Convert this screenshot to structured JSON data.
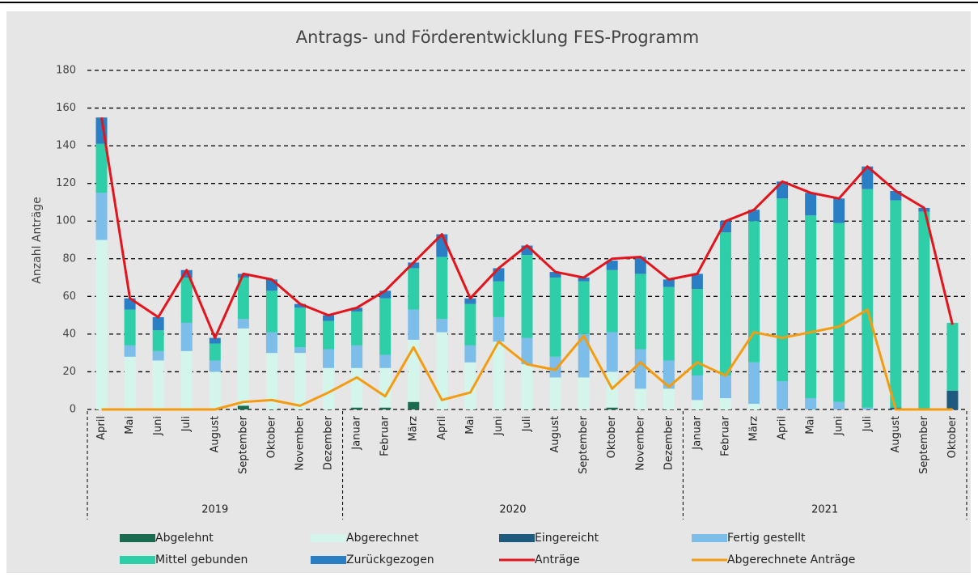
{
  "chart_data": {
    "type": "stacked-bar-line",
    "title": "Antrags- und Förderentwicklung FES-Programm",
    "y_label": "Anzahl Anträge",
    "years": [
      {
        "label": "2019",
        "months": [
          "April",
          "Mai",
          "Juni",
          "Juli",
          "August",
          "September",
          "Oktober",
          "November",
          "Dezember"
        ]
      },
      {
        "label": "2020",
        "months": [
          "Januar",
          "Februar",
          "März",
          "April",
          "Mai",
          "Juni",
          "Juli",
          "August",
          "September",
          "Oktober",
          "November",
          "Dezember"
        ]
      },
      {
        "label": "2021",
        "months": [
          "Januar",
          "Februar",
          "März",
          "April",
          "Mai",
          "Juni",
          "Juli",
          "August",
          "September",
          "Oktober"
        ]
      }
    ],
    "ylim": [
      0,
      180
    ],
    "yticks": [
      0,
      20,
      40,
      60,
      80,
      100,
      120,
      140,
      160,
      180
    ],
    "grid": true,
    "series": [
      {
        "name": "Abgelehnt",
        "kind": "bar",
        "color": "#1a6b50",
        "values": [
          0,
          0,
          0,
          0,
          0,
          2,
          0,
          0,
          0,
          1,
          1,
          4,
          0,
          0,
          0,
          0,
          0,
          0,
          1,
          0,
          0,
          0,
          0,
          0,
          0,
          0,
          0,
          0,
          0,
          0,
          0
        ]
      },
      {
        "name": "Abgerechnet",
        "kind": "bar",
        "color": "#d4f5ec",
        "values": [
          90,
          28,
          26,
          31,
          20,
          41,
          30,
          30,
          22,
          21,
          21,
          33,
          41,
          25,
          36,
          24,
          17,
          17,
          19,
          11,
          11,
          5,
          6,
          3,
          0,
          0,
          0,
          0,
          0,
          0,
          0
        ]
      },
      {
        "name": "Eingereicht",
        "kind": "bar",
        "color": "#1d5a7e",
        "values": [
          0,
          0,
          0,
          0,
          0,
          0,
          0,
          0,
          0,
          0,
          0,
          0,
          0,
          0,
          0,
          0,
          0,
          0,
          0,
          0,
          0,
          0,
          0,
          0,
          0,
          0,
          0,
          0,
          1,
          0,
          10
        ]
      },
      {
        "name": "Fertig gestellt",
        "kind": "bar",
        "color": "#7cbde9",
        "values": [
          25,
          6,
          5,
          15,
          6,
          5,
          11,
          3,
          10,
          12,
          7,
          16,
          7,
          9,
          13,
          14,
          11,
          23,
          21,
          21,
          15,
          13,
          12,
          22,
          15,
          6,
          4,
          1,
          0,
          0,
          0
        ]
      },
      {
        "name": "Mittel gebunden",
        "kind": "bar",
        "color": "#2ecfa8",
        "values": [
          26,
          19,
          11,
          24,
          9,
          22,
          22,
          21,
          15,
          18,
          30,
          22,
          33,
          22,
          19,
          44,
          42,
          28,
          33,
          40,
          39,
          46,
          76,
          75,
          97,
          97,
          95,
          116,
          110,
          105,
          36
        ]
      },
      {
        "name": "Zurückgezogen",
        "kind": "bar",
        "color": "#2a7fc4",
        "values": [
          14,
          6,
          7,
          4,
          3,
          2,
          6,
          2,
          3,
          2,
          4,
          3,
          12,
          3,
          7,
          5,
          3,
          2,
          5,
          9,
          4,
          8,
          6,
          6,
          9,
          12,
          13,
          12,
          5,
          2,
          0
        ]
      },
      {
        "name": "Anträge",
        "kind": "line",
        "color": "#e3141c",
        "values": [
          155,
          59,
          49,
          74,
          38,
          72,
          69,
          56,
          50,
          54,
          63,
          78,
          93,
          59,
          75,
          87,
          73,
          70,
          80,
          81,
          69,
          72,
          100,
          106,
          121,
          115,
          112,
          129,
          116,
          107,
          45
        ]
      },
      {
        "name": "Abgerechnete Anträge",
        "kind": "line",
        "color": "#f39c12",
        "values": [
          0,
          0,
          0,
          0,
          0,
          4,
          5,
          2,
          9,
          17,
          7,
          33,
          5,
          9,
          36,
          24,
          21,
          39,
          11,
          25,
          12,
          25,
          18,
          41,
          38,
          41,
          44,
          53,
          0,
          0,
          0
        ]
      }
    ]
  }
}
